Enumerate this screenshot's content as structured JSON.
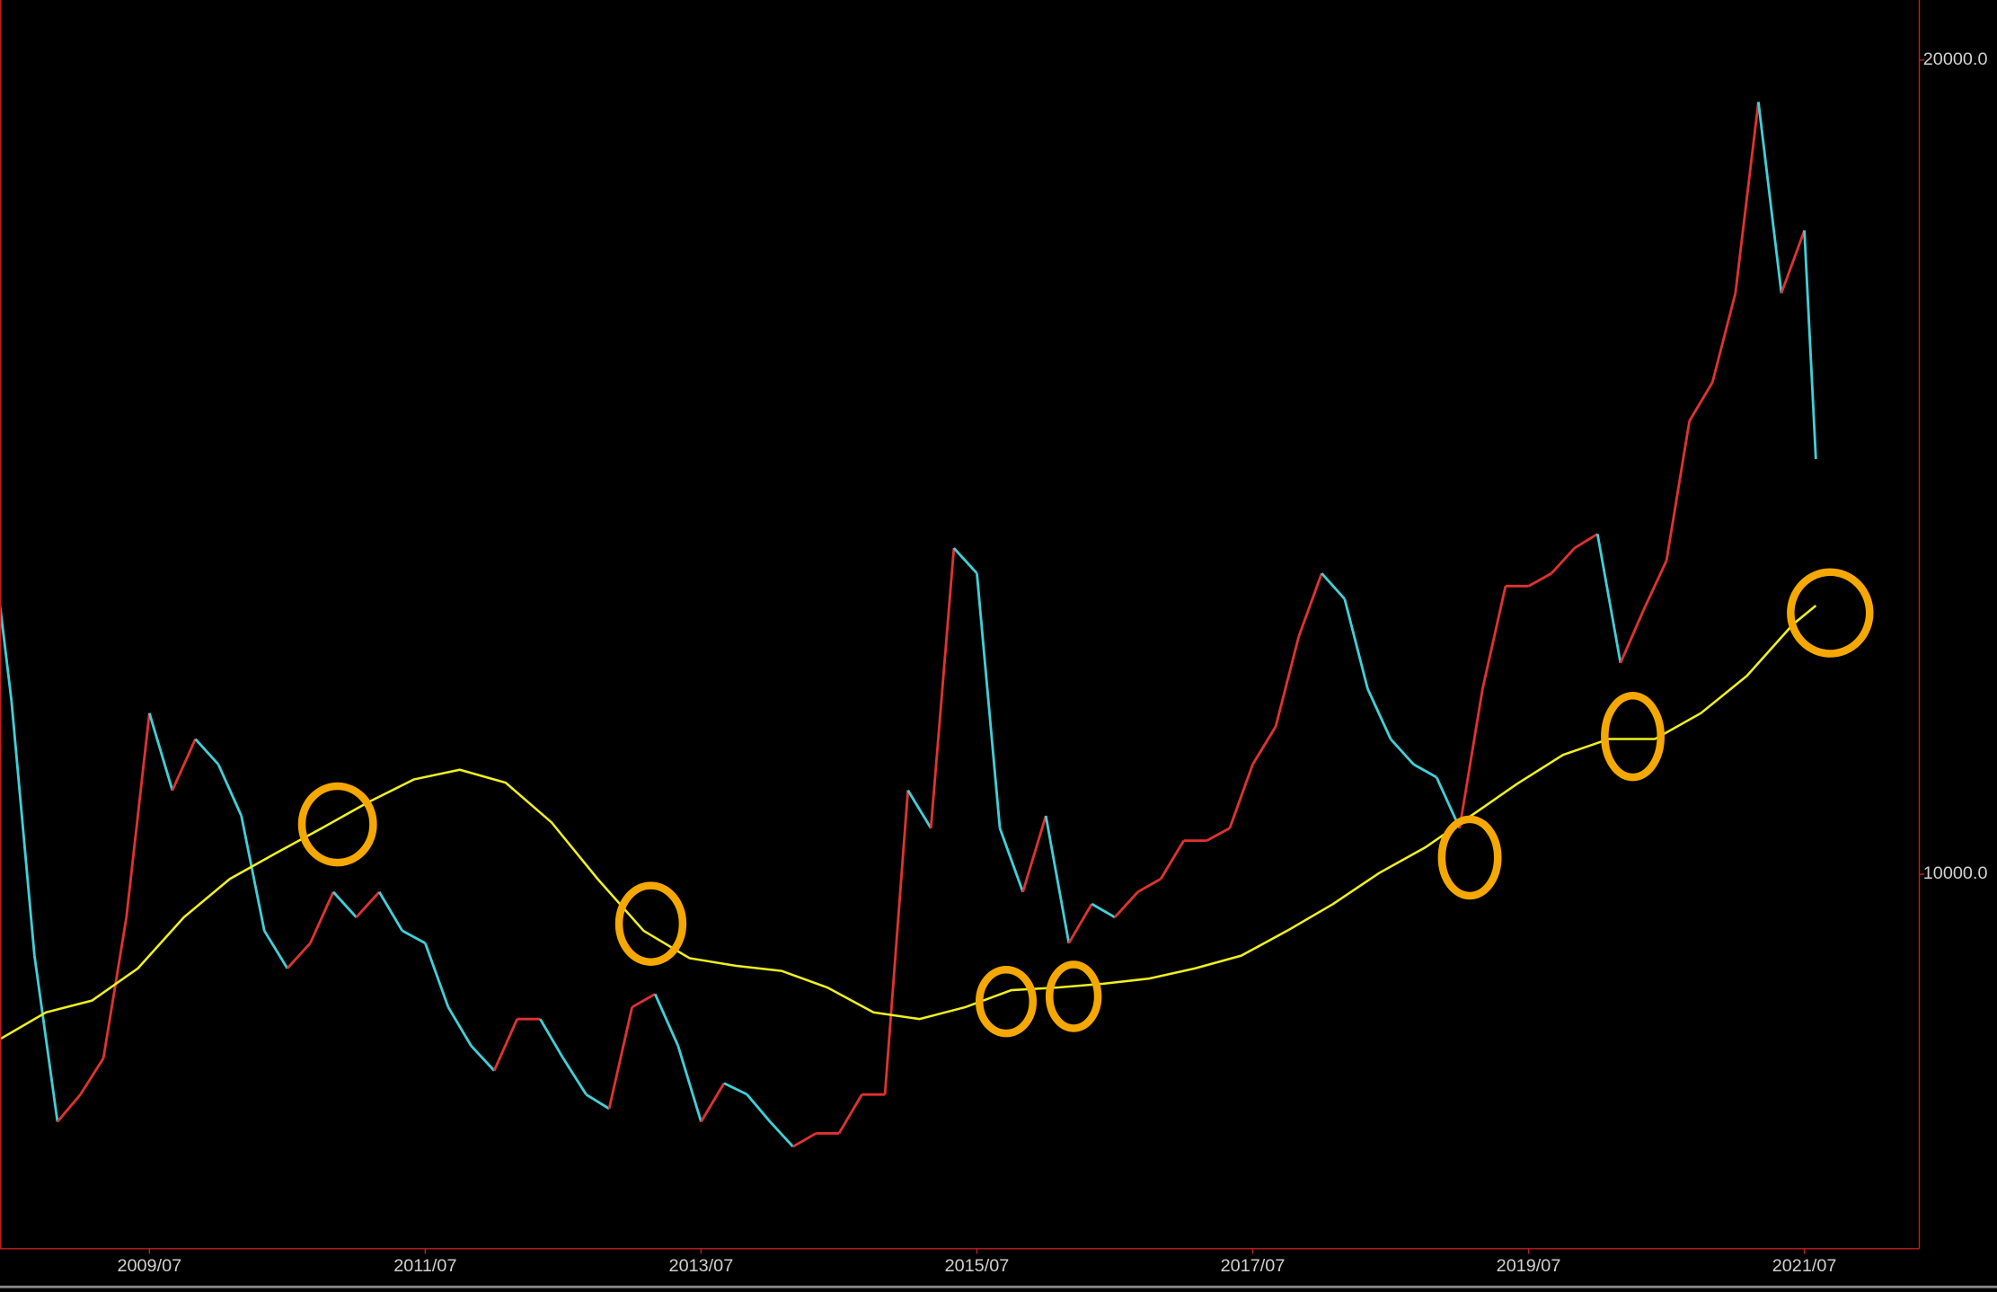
{
  "chart_data": {
    "type": "line",
    "log_scale": true,
    "grid": false,
    "xlim": [
      "2008/06",
      "2022/05"
    ],
    "xticks": [
      "2009/07",
      "2011/07",
      "2013/07",
      "2015/07",
      "2017/07",
      "2019/07",
      "2021/07"
    ],
    "ylim": [
      7270,
      21050
    ],
    "yticks": [
      {
        "value": 10000,
        "label": "10000.0"
      },
      {
        "value": 20000,
        "label": "20000.0"
      }
    ],
    "series": [
      {
        "color": "#40d0d8",
        "up_color": "#e03232",
        "x": [
          "2008/05",
          "2008/07",
          "2008/09",
          "2008/11",
          "2009/01",
          "2009/03",
          "2009/05",
          "2009/07",
          "2009/09",
          "2009/11",
          "2010/01",
          "2010/03",
          "2010/05",
          "2010/07",
          "2010/09",
          "2010/11",
          "2011/01",
          "2011/03",
          "2011/05",
          "2011/07",
          "2011/09",
          "2011/11",
          "2012/01",
          "2012/03",
          "2012/05",
          "2012/07",
          "2012/09",
          "2012/11",
          "2013/01",
          "2013/03",
          "2013/05",
          "2013/07",
          "2013/09",
          "2013/11",
          "2014/01",
          "2014/03",
          "2014/05",
          "2014/07",
          "2014/09",
          "2014/11",
          "2015/01",
          "2015/03",
          "2015/05",
          "2015/07",
          "2015/09",
          "2015/11",
          "2016/01",
          "2016/03",
          "2016/05",
          "2016/07",
          "2016/09",
          "2016/11",
          "2017/01",
          "2017/03",
          "2017/05",
          "2017/07",
          "2017/09",
          "2017/11",
          "2018/01",
          "2018/03",
          "2018/05",
          "2018/07",
          "2018/09",
          "2018/11",
          "2019/01",
          "2019/03",
          "2019/05",
          "2019/07",
          "2019/09",
          "2019/11",
          "2020/01",
          "2020/03",
          "2020/05",
          "2020/07",
          "2020/09",
          "2020/11",
          "2021/01",
          "2021/03",
          "2021/05",
          "2021/07",
          "2021/08"
        ],
        "values": [
          13640,
          11590,
          9330,
          8100,
          8290,
          8550,
          9640,
          11470,
          10740,
          11220,
          10980,
          10510,
          9530,
          9230,
          9430,
          9850,
          9640,
          9850,
          9530,
          9430,
          8930,
          8640,
          8460,
          8840,
          8840,
          8550,
          8290,
          8190,
          8930,
          9030,
          8640,
          8100,
          8370,
          8290,
          8100,
          7930,
          8020,
          8020,
          8290,
          8290,
          10740,
          10400,
          13200,
          12920,
          10400,
          9850,
          10510,
          9430,
          9750,
          9640,
          9850,
          9960,
          10290,
          10290,
          10400,
          10980,
          11340,
          12240,
          12920,
          12640,
          11710,
          11220,
          10980,
          10860,
          10400,
          11710,
          12780,
          12780,
          12920,
          13200,
          13360,
          11970,
          12520,
          13060,
          14710,
          15200,
          16400,
          19300,
          16400,
          17300,
          14240
        ]
      },
      {
        "color": "#f0f020",
        "x": [
          "2008/06",
          "2008/10",
          "2009/02",
          "2009/06",
          "2009/10",
          "2010/02",
          "2010/06",
          "2010/10",
          "2011/02",
          "2011/06",
          "2011/10",
          "2012/02",
          "2012/06",
          "2012/10",
          "2013/02",
          "2013/06",
          "2013/10",
          "2014/02",
          "2014/06",
          "2014/10",
          "2015/02",
          "2015/06",
          "2015/10",
          "2016/02",
          "2016/06",
          "2016/10",
          "2017/02",
          "2017/06",
          "2017/10",
          "2018/02",
          "2018/06",
          "2018/10",
          "2019/02",
          "2019/06",
          "2019/10",
          "2020/02",
          "2020/06",
          "2020/10",
          "2021/02",
          "2021/06",
          "2021/08"
        ],
        "values": [
          8690,
          8890,
          8980,
          9230,
          9640,
          9960,
          10180,
          10400,
          10630,
          10840,
          10930,
          10810,
          10450,
          9960,
          9530,
          9310,
          9250,
          9210,
          9080,
          8890,
          8840,
          8930,
          9060,
          9080,
          9110,
          9150,
          9230,
          9330,
          9530,
          9750,
          10010,
          10230,
          10510,
          10800,
          11070,
          11220,
          11220,
          11470,
          11840,
          12370,
          12570
        ]
      }
    ]
  }
}
